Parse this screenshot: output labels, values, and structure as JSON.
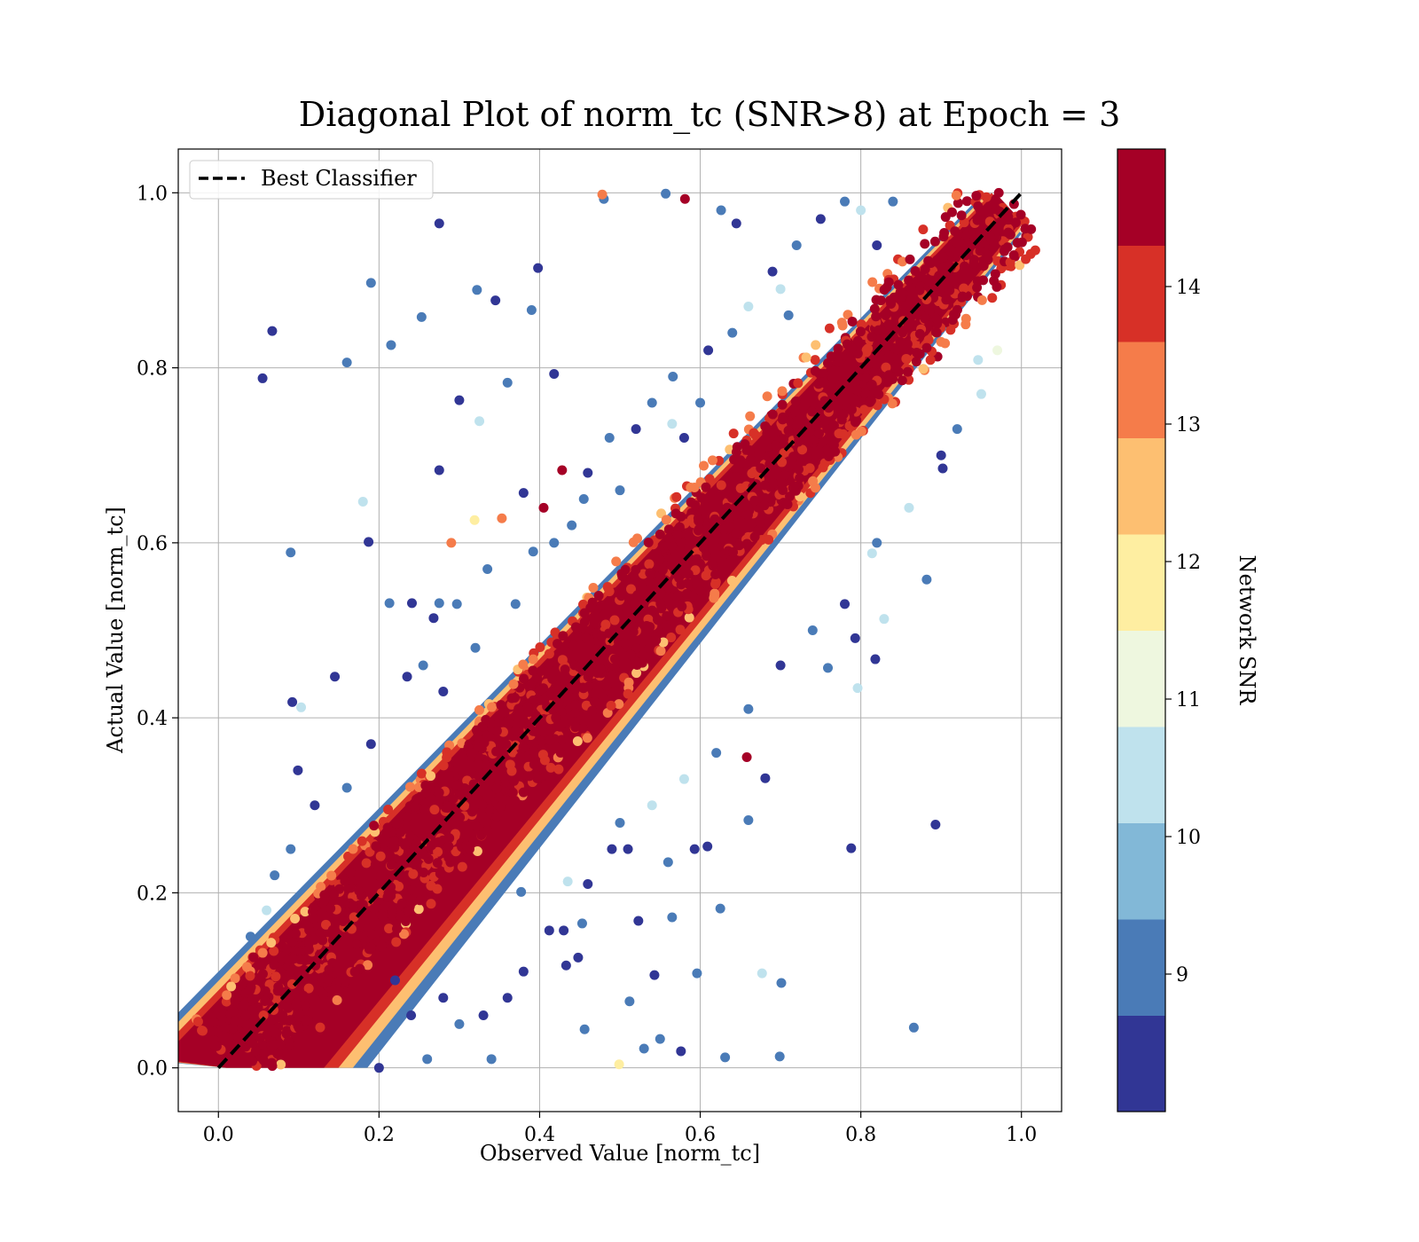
{
  "chart_data": {
    "type": "scatter",
    "title": "Diagonal Plot of norm_tc (SNR>8) at Epoch = 3",
    "xlabel": "Observed Value [norm_tc]",
    "ylabel": "Actual Value [norm_tc]",
    "xlim": [
      -0.05,
      1.05
    ],
    "ylim": [
      -0.05,
      1.05
    ],
    "xticks": [
      "0.0",
      "0.2",
      "0.4",
      "0.6",
      "0.8",
      "1.0"
    ],
    "yticks": [
      "0.0",
      "0.2",
      "0.4",
      "0.6",
      "0.8",
      "1.0"
    ],
    "grid": true,
    "legend": {
      "position": "top-left",
      "entries": [
        "Best Classifier"
      ]
    },
    "reference_line": {
      "name": "Best Classifier",
      "x": [
        0,
        1
      ],
      "y": [
        0,
        1
      ],
      "style": "dashed",
      "color": "#000000"
    },
    "colorbar": {
      "label": "Network SNR",
      "range": [
        8,
        15
      ],
      "ticks": [
        "9",
        "10",
        "11",
        "12",
        "13",
        "14"
      ],
      "colors": [
        "#313695",
        "#4a7bb7",
        "#82b8d7",
        "#bfe2ed",
        "#eef7df",
        "#feeea1",
        "#fdbf71",
        "#f57c4a",
        "#d73027",
        "#a50026"
      ]
    },
    "dominant_color": "#a50026",
    "band_core_half_width": 0.06,
    "points": [
      [
        0.067,
        0.842,
        8.3
      ],
      [
        0.055,
        0.788,
        8.3
      ],
      [
        0.19,
        0.897,
        9.3
      ],
      [
        0.16,
        0.806,
        9.3
      ],
      [
        0.275,
        0.965,
        8.3
      ],
      [
        0.215,
        0.826,
        9.3
      ],
      [
        0.253,
        0.858,
        9.3
      ],
      [
        0.322,
        0.889,
        9.3
      ],
      [
        0.345,
        0.877,
        8.3
      ],
      [
        0.398,
        0.914,
        8.3
      ],
      [
        0.39,
        0.866,
        9.3
      ],
      [
        0.48,
        0.993,
        9.3
      ],
      [
        0.478,
        0.998,
        13.3
      ],
      [
        0.557,
        0.999,
        9.3
      ],
      [
        0.581,
        0.993,
        14.8
      ],
      [
        0.626,
        0.98,
        9.3
      ],
      [
        0.645,
        0.965,
        8.3
      ],
      [
        0.565,
        0.736,
        10.3
      ],
      [
        0.09,
        0.589,
        9.3
      ],
      [
        0.187,
        0.601,
        8.3
      ],
      [
        0.18,
        0.647,
        10.3
      ],
      [
        0.145,
        0.447,
        8.3
      ],
      [
        0.092,
        0.418,
        8.3
      ],
      [
        0.103,
        0.412,
        10.3
      ],
      [
        0.099,
        0.34,
        8.3
      ],
      [
        0.275,
        0.683,
        8.3
      ],
      [
        0.3,
        0.763,
        8.3
      ],
      [
        0.325,
        0.739,
        10.3
      ],
      [
        0.36,
        0.783,
        9.3
      ],
      [
        0.418,
        0.793,
        8.3
      ],
      [
        0.38,
        0.657,
        8.3
      ],
      [
        0.353,
        0.628,
        13.3
      ],
      [
        0.428,
        0.683,
        14.8
      ],
      [
        0.405,
        0.64,
        14.8
      ],
      [
        0.275,
        0.531,
        9.3
      ],
      [
        0.213,
        0.531,
        9.3
      ],
      [
        0.241,
        0.531,
        8.3
      ],
      [
        0.268,
        0.514,
        8.3
      ],
      [
        0.29,
        0.6,
        13.3
      ],
      [
        0.319,
        0.626,
        11.8
      ],
      [
        0.658,
        0.355,
        14.8
      ],
      [
        0.681,
        0.331,
        8.3
      ],
      [
        0.66,
        0.283,
        9.3
      ],
      [
        0.593,
        0.25,
        8.3
      ],
      [
        0.609,
        0.253,
        8.3
      ],
      [
        0.788,
        0.251,
        8.3
      ],
      [
        0.893,
        0.278,
        8.3
      ],
      [
        0.866,
        0.046,
        9.3
      ],
      [
        0.625,
        0.182,
        9.3
      ],
      [
        0.701,
        0.097,
        9.3
      ],
      [
        0.699,
        0.013,
        9.3
      ],
      [
        0.631,
        0.012,
        9.3
      ],
      [
        0.576,
        0.019,
        8.3
      ],
      [
        0.543,
        0.106,
        8.3
      ],
      [
        0.596,
        0.108,
        9.3
      ],
      [
        0.677,
        0.108,
        10.3
      ],
      [
        0.499,
        0.004,
        11.8
      ],
      [
        0.512,
        0.076,
        9.3
      ],
      [
        0.523,
        0.168,
        8.3
      ],
      [
        0.565,
        0.172,
        9.3
      ],
      [
        0.882,
        0.558,
        9.3
      ],
      [
        0.829,
        0.513,
        10.3
      ],
      [
        0.818,
        0.467,
        8.3
      ],
      [
        0.793,
        0.491,
        8.3
      ],
      [
        0.759,
        0.457,
        9.3
      ],
      [
        0.796,
        0.434,
        10.3
      ],
      [
        0.814,
        0.588,
        10.3
      ],
      [
        0.902,
        0.685,
        8.3
      ],
      [
        0.946,
        0.809,
        10.3
      ],
      [
        0.43,
        0.157,
        8.3
      ],
      [
        0.412,
        0.157,
        8.3
      ],
      [
        0.453,
        0.165,
        9.3
      ],
      [
        0.448,
        0.126,
        8.3
      ],
      [
        0.433,
        0.117,
        8.3
      ],
      [
        0.456,
        0.044,
        9.3
      ],
      [
        0.55,
        0.033,
        9.3
      ],
      [
        0.53,
        0.022,
        9.3
      ],
      [
        0.56,
        0.235,
        9.3
      ],
      [
        0.51,
        0.25,
        8.3
      ],
      [
        0.49,
        0.25,
        8.3
      ],
      [
        0.435,
        0.213,
        10.3
      ],
      [
        0.377,
        0.201,
        9.3
      ],
      [
        0.235,
        0.447,
        8.3
      ],
      [
        0.255,
        0.46,
        9.3
      ],
      [
        0.297,
        0.53,
        9.3
      ],
      [
        0.335,
        0.57,
        9.3
      ],
      [
        0.37,
        0.53,
        9.3
      ],
      [
        0.392,
        0.59,
        9.3
      ],
      [
        0.418,
        0.6,
        9.3
      ],
      [
        0.455,
        0.65,
        9.3
      ],
      [
        0.46,
        0.68,
        8.3
      ],
      [
        0.487,
        0.72,
        9.3
      ],
      [
        0.52,
        0.73,
        8.3
      ],
      [
        0.54,
        0.76,
        9.3
      ],
      [
        0.566,
        0.79,
        9.3
      ],
      [
        0.61,
        0.82,
        8.3
      ],
      [
        0.64,
        0.84,
        9.3
      ],
      [
        0.66,
        0.87,
        10.3
      ],
      [
        0.69,
        0.91,
        8.3
      ],
      [
        0.72,
        0.94,
        9.3
      ],
      [
        0.75,
        0.97,
        8.3
      ],
      [
        0.78,
        0.99,
        9.3
      ],
      [
        0.8,
        0.98,
        10.3
      ],
      [
        0.84,
        0.99,
        9.3
      ],
      [
        0.82,
        0.94,
        8.3
      ],
      [
        0.71,
        0.86,
        9.3
      ],
      [
        0.7,
        0.89,
        10.3
      ],
      [
        0.6,
        0.76,
        9.3
      ],
      [
        0.58,
        0.72,
        8.3
      ],
      [
        0.5,
        0.66,
        9.3
      ],
      [
        0.44,
        0.62,
        9.3
      ],
      [
        0.32,
        0.48,
        9.3
      ],
      [
        0.28,
        0.43,
        8.3
      ],
      [
        0.19,
        0.37,
        8.3
      ],
      [
        0.16,
        0.32,
        9.3
      ],
      [
        0.12,
        0.3,
        8.3
      ],
      [
        0.09,
        0.25,
        9.3
      ],
      [
        0.07,
        0.22,
        9.3
      ],
      [
        0.06,
        0.18,
        10.3
      ],
      [
        0.04,
        0.15,
        9.3
      ],
      [
        0.3,
        0.05,
        9.3
      ],
      [
        0.33,
        0.06,
        8.3
      ],
      [
        0.36,
        0.08,
        8.3
      ],
      [
        0.38,
        0.11,
        8.3
      ],
      [
        0.34,
        0.01,
        9.3
      ],
      [
        0.26,
        0.01,
        9.3
      ],
      [
        0.2,
        0.0,
        8.3
      ],
      [
        0.24,
        0.06,
        8.3
      ],
      [
        0.28,
        0.08,
        8.3
      ],
      [
        0.22,
        0.1,
        8.3
      ],
      [
        0.46,
        0.21,
        8.3
      ],
      [
        0.5,
        0.28,
        9.3
      ],
      [
        0.54,
        0.3,
        10.3
      ],
      [
        0.58,
        0.33,
        10.3
      ],
      [
        0.62,
        0.36,
        9.3
      ],
      [
        0.66,
        0.41,
        9.3
      ],
      [
        0.7,
        0.46,
        8.3
      ],
      [
        0.74,
        0.5,
        9.3
      ],
      [
        0.78,
        0.53,
        8.3
      ],
      [
        0.82,
        0.6,
        9.3
      ],
      [
        0.86,
        0.64,
        10.3
      ],
      [
        0.9,
        0.7,
        8.3
      ],
      [
        0.92,
        0.73,
        9.3
      ],
      [
        0.95,
        0.77,
        10.3
      ],
      [
        0.97,
        0.82,
        11.3
      ]
    ]
  }
}
